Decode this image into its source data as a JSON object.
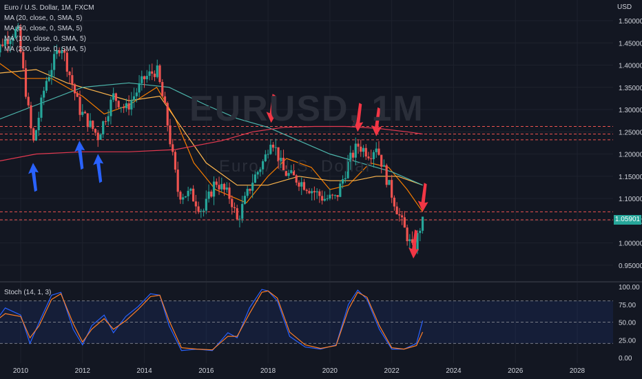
{
  "header": {
    "symbol_line": "Euro / U.S. Dollar, 1M, FXCM",
    "indicators": [
      "MA (20, close, 0, SMA, 5)",
      "MA (50, close, 0, SMA, 5)",
      "MA (100, close, 0, SMA, 5)",
      "MA (200, close, 0, SMA, 5)"
    ],
    "currency": "USD"
  },
  "watermark": {
    "main": "EURUSD, 1M",
    "sub": "Euro / U.S. Dollar"
  },
  "last_price": "1.05901",
  "stoch_label": "Stoch (14, 1, 3)",
  "colors": {
    "background": "#131722",
    "up": "#26a69a",
    "down": "#ef5350",
    "ma20": "#f57c00",
    "ma50": "#ffb74d",
    "ma100": "#4db6ac",
    "ma200": "#e53950",
    "stoch_k": "#2962ff",
    "stoch_d": "#ff7f27",
    "arrow_red": "#f23645",
    "arrow_blue": "#2962ff"
  },
  "chart_data": [
    {
      "type": "candlestick",
      "ylim": [
        0.93,
        1.53
      ],
      "y_ticks": [
        "1.50000",
        "1.45000",
        "1.40000",
        "1.35000",
        "1.30000",
        "1.25000",
        "1.20000",
        "1.15000",
        "1.10000",
        "1.05000",
        "1.00000",
        "0.95000"
      ],
      "x_ticks": [
        "2010",
        "2012",
        "2014",
        "2016",
        "2018",
        "2020",
        "2022",
        "2024",
        "2026",
        "2028"
      ],
      "horizontal_levels": [
        1.262,
        1.245,
        1.232,
        1.07,
        1.052
      ],
      "anchors": [
        {
          "x": 2009.0,
          "y": 1.4
        },
        {
          "x": 2009.4,
          "y": 1.45
        },
        {
          "x": 2009.9,
          "y": 1.48
        },
        {
          "x": 2010.4,
          "y": 1.22
        },
        {
          "x": 2010.8,
          "y": 1.36
        },
        {
          "x": 2011.3,
          "y": 1.45
        },
        {
          "x": 2011.9,
          "y": 1.3
        },
        {
          "x": 2012.5,
          "y": 1.24
        },
        {
          "x": 2013.0,
          "y": 1.33
        },
        {
          "x": 2013.4,
          "y": 1.3
        },
        {
          "x": 2014.0,
          "y": 1.37
        },
        {
          "x": 2014.4,
          "y": 1.39
        },
        {
          "x": 2014.7,
          "y": 1.29
        },
        {
          "x": 2015.1,
          "y": 1.11
        },
        {
          "x": 2015.5,
          "y": 1.11
        },
        {
          "x": 2015.9,
          "y": 1.07
        },
        {
          "x": 2016.3,
          "y": 1.14
        },
        {
          "x": 2016.8,
          "y": 1.1
        },
        {
          "x": 2017.0,
          "y": 1.05
        },
        {
          "x": 2017.5,
          "y": 1.14
        },
        {
          "x": 2017.9,
          "y": 1.19
        },
        {
          "x": 2018.1,
          "y": 1.24
        },
        {
          "x": 2018.5,
          "y": 1.16
        },
        {
          "x": 2019.0,
          "y": 1.14
        },
        {
          "x": 2019.4,
          "y": 1.12
        },
        {
          "x": 2019.8,
          "y": 1.1
        },
        {
          "x": 2020.2,
          "y": 1.1
        },
        {
          "x": 2020.6,
          "y": 1.18
        },
        {
          "x": 2020.9,
          "y": 1.22
        },
        {
          "x": 2021.3,
          "y": 1.2
        },
        {
          "x": 2021.5,
          "y": 1.22
        },
        {
          "x": 2021.9,
          "y": 1.13
        },
        {
          "x": 2022.3,
          "y": 1.05
        },
        {
          "x": 2022.7,
          "y": 0.98
        },
        {
          "x": 2022.9,
          "y": 1.03
        },
        {
          "x": 2023.0,
          "y": 1.059
        }
      ],
      "moving_averages": [
        {
          "name": "MA (20, close, 0, SMA, 5)",
          "points": [
            [
              2009.0,
              1.42
            ],
            [
              2010.0,
              1.37
            ],
            [
              2011.0,
              1.37
            ],
            [
              2012.0,
              1.33
            ],
            [
              2012.7,
              1.29
            ],
            [
              2013.5,
              1.31
            ],
            [
              2014.4,
              1.35
            ],
            [
              2015.0,
              1.28
            ],
            [
              2015.6,
              1.18
            ],
            [
              2016.3,
              1.12
            ],
            [
              2017.3,
              1.09
            ],
            [
              2018.0,
              1.15
            ],
            [
              2018.6,
              1.19
            ],
            [
              2019.4,
              1.17
            ],
            [
              2020.0,
              1.12
            ],
            [
              2020.6,
              1.13
            ],
            [
              2021.3,
              1.18
            ],
            [
              2021.9,
              1.17
            ],
            [
              2022.5,
              1.12
            ],
            [
              2023.0,
              1.07
            ]
          ]
        },
        {
          "name": "MA (50, close, 0, SMA, 5)",
          "points": [
            [
              2009.0,
              1.38
            ],
            [
              2010.5,
              1.39
            ],
            [
              2011.5,
              1.36
            ],
            [
              2012.5,
              1.34
            ],
            [
              2013.5,
              1.32
            ],
            [
              2014.5,
              1.33
            ],
            [
              2015.2,
              1.26
            ],
            [
              2016.0,
              1.18
            ],
            [
              2017.0,
              1.13
            ],
            [
              2018.0,
              1.13
            ],
            [
              2019.0,
              1.15
            ],
            [
              2020.0,
              1.14
            ],
            [
              2020.8,
              1.14
            ],
            [
              2021.5,
              1.15
            ],
            [
              2022.2,
              1.15
            ],
            [
              2023.0,
              1.13
            ]
          ]
        },
        {
          "name": "MA (100, close, 0, SMA, 5)",
          "points": [
            [
              2009.0,
              1.27
            ],
            [
              2010.5,
              1.31
            ],
            [
              2012.0,
              1.35
            ],
            [
              2013.5,
              1.36
            ],
            [
              2014.8,
              1.35
            ],
            [
              2016.0,
              1.31
            ],
            [
              2017.0,
              1.28
            ],
            [
              2018.0,
              1.26
            ],
            [
              2019.0,
              1.23
            ],
            [
              2020.0,
              1.2
            ],
            [
              2021.0,
              1.18
            ],
            [
              2022.0,
              1.16
            ],
            [
              2023.0,
              1.13
            ]
          ]
        },
        {
          "name": "MA (200, close, 0, SMA, 5)",
          "points": [
            [
              2009.0,
              1.18
            ],
            [
              2010.5,
              1.2
            ],
            [
              2012.0,
              1.205
            ],
            [
              2013.5,
              1.205
            ],
            [
              2015.0,
              1.21
            ],
            [
              2016.5,
              1.23
            ],
            [
              2017.5,
              1.25
            ],
            [
              2018.5,
              1.26
            ],
            [
              2019.5,
              1.262
            ],
            [
              2020.5,
              1.262
            ],
            [
              2021.5,
              1.258
            ],
            [
              2022.5,
              1.25
            ],
            [
              2023.0,
              1.245
            ]
          ]
        }
      ],
      "annotations": [
        {
          "type": "arrow",
          "color": "blue",
          "direction": "up",
          "target": [
            2010.4,
            1.18
          ]
        },
        {
          "type": "arrow",
          "color": "blue",
          "direction": "up",
          "target": [
            2011.9,
            1.23
          ]
        },
        {
          "type": "arrow",
          "color": "blue",
          "direction": "up",
          "target": [
            2012.5,
            1.2
          ]
        },
        {
          "type": "arrow",
          "color": "red",
          "direction": "down",
          "target": [
            2018.1,
            1.27
          ]
        },
        {
          "type": "arrow",
          "color": "red",
          "direction": "down",
          "target": [
            2020.9,
            1.25
          ]
        },
        {
          "type": "arrow",
          "color": "red",
          "direction": "down",
          "target": [
            2021.5,
            1.24
          ]
        },
        {
          "type": "arrow",
          "color": "red",
          "direction": "down",
          "target": [
            2023.0,
            1.07
          ]
        },
        {
          "type": "arrow",
          "color": "red",
          "direction": "down",
          "target": [
            2022.7,
            0.965
          ]
        }
      ]
    },
    {
      "type": "line",
      "title": "Stoch (14, 1, 3)",
      "ylim": [
        0,
        100
      ],
      "y_ticks": [
        "100.00",
        "75.00",
        "50.00",
        "25.00",
        "0.00"
      ],
      "band": [
        20,
        80
      ],
      "series": [
        {
          "name": "%K",
          "x": [
            2009.0,
            2009.5,
            2010.0,
            2010.3,
            2010.6,
            2011.0,
            2011.3,
            2011.7,
            2012.0,
            2012.3,
            2012.7,
            2013.0,
            2013.4,
            2013.8,
            2014.2,
            2014.5,
            2014.8,
            2015.2,
            2015.7,
            2016.2,
            2016.7,
            2017.0,
            2017.4,
            2017.8,
            2018.0,
            2018.3,
            2018.7,
            2019.2,
            2019.7,
            2020.2,
            2020.6,
            2020.9,
            2021.2,
            2021.6,
            2022.0,
            2022.4,
            2022.8,
            2023.0
          ],
          "y": [
            40,
            70,
            60,
            20,
            50,
            88,
            92,
            40,
            18,
            45,
            60,
            35,
            58,
            72,
            90,
            88,
            45,
            10,
            12,
            10,
            35,
            28,
            70,
            96,
            94,
            80,
            30,
            15,
            12,
            18,
            75,
            95,
            82,
            40,
            12,
            12,
            20,
            52
          ]
        },
        {
          "name": "%D",
          "x": [
            2009.0,
            2009.5,
            2010.0,
            2010.3,
            2010.6,
            2011.0,
            2011.3,
            2011.7,
            2012.0,
            2012.3,
            2012.7,
            2013.0,
            2013.4,
            2013.8,
            2014.2,
            2014.5,
            2014.8,
            2015.2,
            2015.7,
            2016.2,
            2016.7,
            2017.0,
            2017.4,
            2017.8,
            2018.0,
            2018.3,
            2018.7,
            2019.2,
            2019.7,
            2020.2,
            2020.6,
            2020.9,
            2021.2,
            2021.6,
            2022.0,
            2022.4,
            2022.8,
            2023.0
          ],
          "y": [
            45,
            62,
            58,
            28,
            45,
            82,
            90,
            48,
            22,
            40,
            55,
            40,
            52,
            68,
            86,
            88,
            52,
            14,
            12,
            11,
            30,
            30,
            62,
            92,
            94,
            84,
            36,
            18,
            13,
            17,
            68,
            92,
            85,
            45,
            14,
            12,
            17,
            36
          ]
        }
      ]
    }
  ]
}
